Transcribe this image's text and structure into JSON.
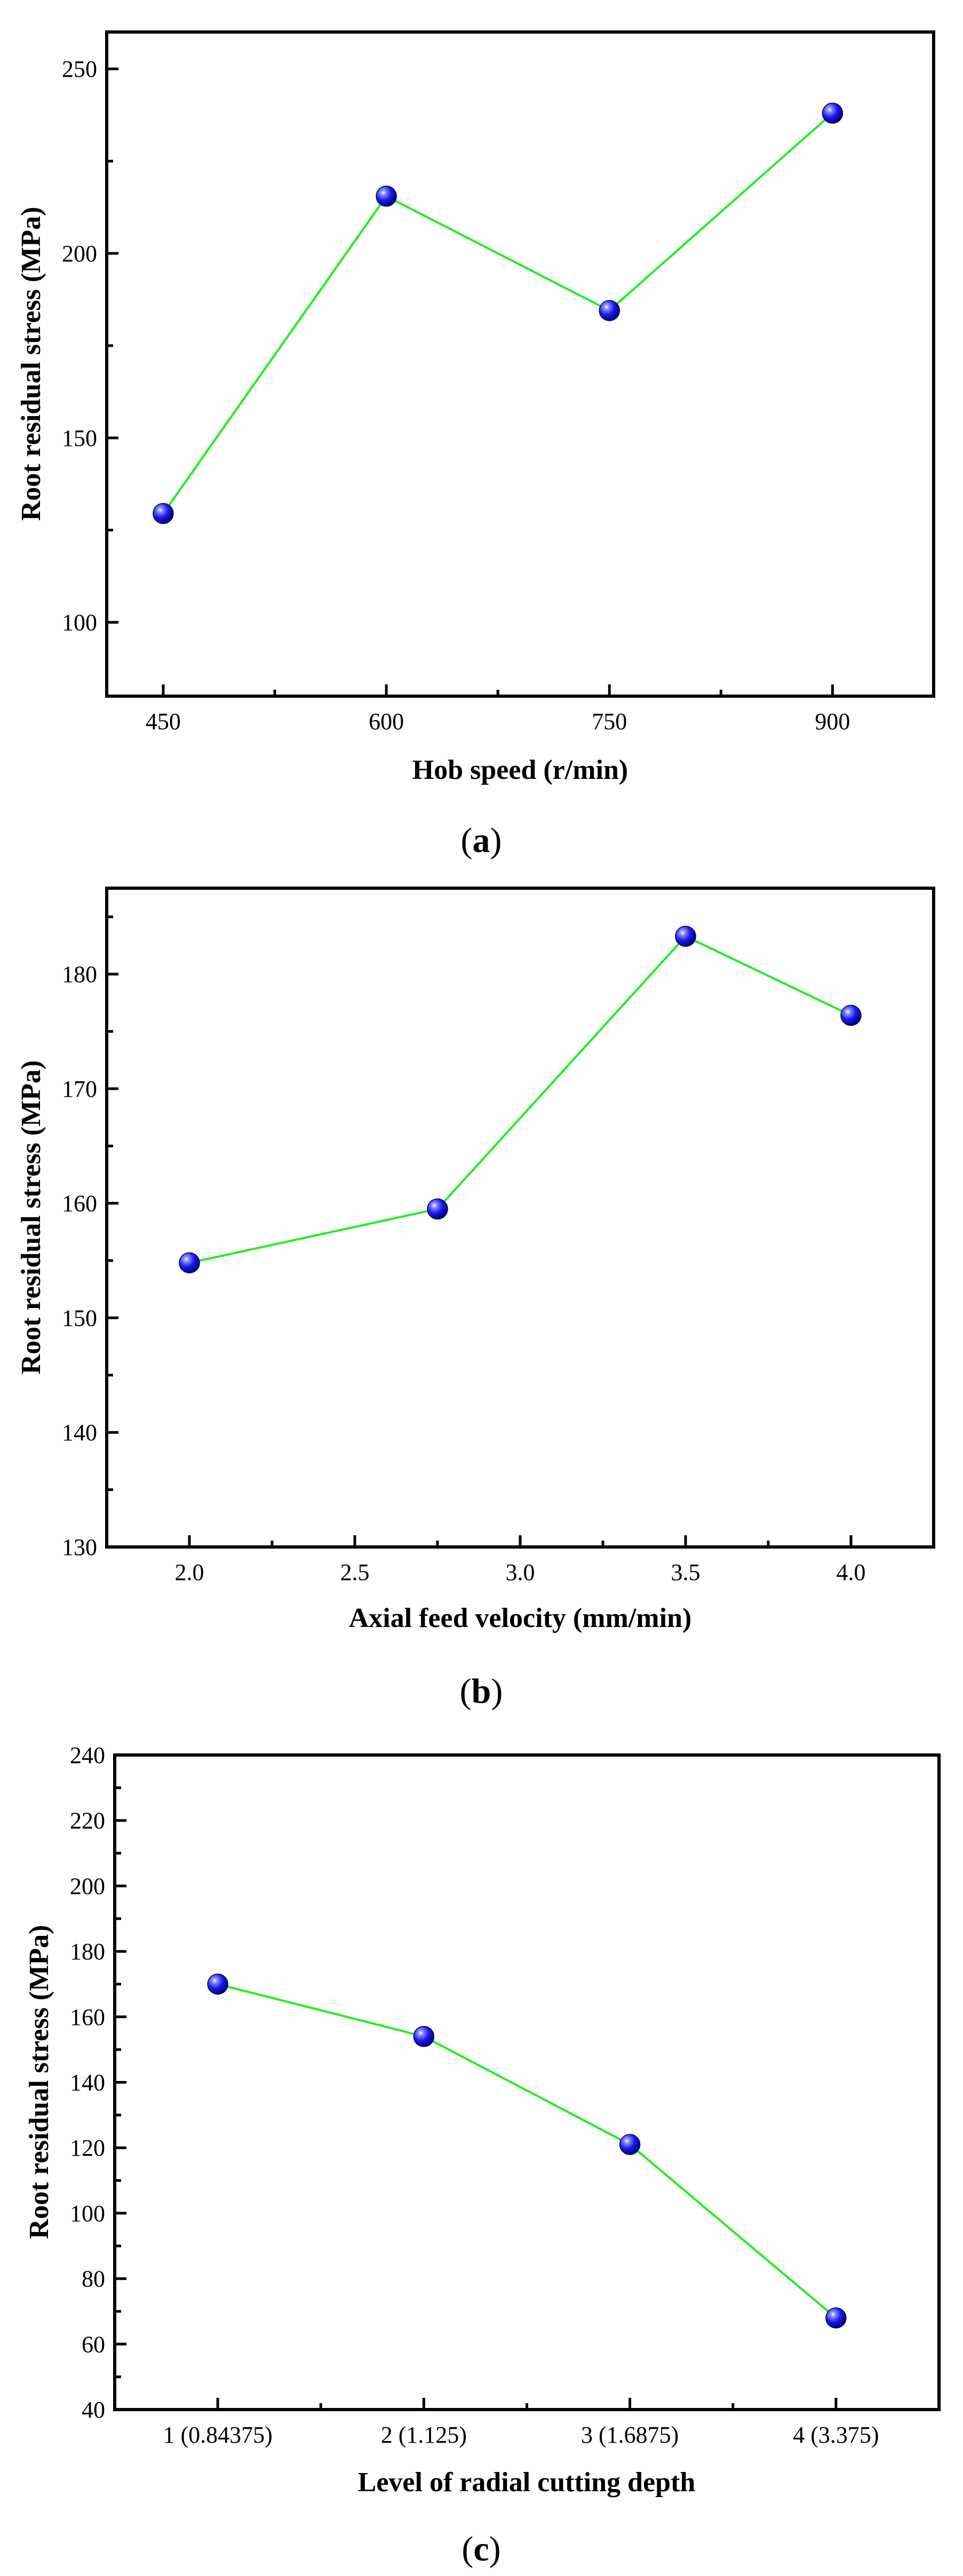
{
  "colors": {
    "line": "#22ee22",
    "marker": "#1a1aee",
    "axis": "#000000"
  },
  "chart_data": [
    {
      "type": "line",
      "panel": "a",
      "xlabel": "Hob speed (r/min)",
      "ylabel": "Root residual stress (MPa)",
      "categories": [
        "450",
        "600",
        "750",
        "900"
      ],
      "x": [
        450,
        600,
        750,
        900
      ],
      "values": [
        129.5,
        215.5,
        184.5,
        238
      ],
      "xlim": [
        412,
        968
      ],
      "ylim": [
        80,
        260
      ],
      "xticks": [
        "450",
        "600",
        "750",
        "900"
      ],
      "yticks": [
        "100",
        "150",
        "200",
        "250"
      ],
      "caption": {
        "open": "(",
        "letter": "a",
        "close": ")"
      }
    },
    {
      "type": "line",
      "panel": "b",
      "xlabel": "Axial feed velocity (mm/min)",
      "ylabel": "Root residual stress (MPa)",
      "x": [
        2.0,
        2.75,
        3.5,
        4.0
      ],
      "values": [
        154.8,
        159.5,
        183.3,
        176.4
      ],
      "xlim": [
        1.75,
        4.25
      ],
      "ylim": [
        130,
        187.5
      ],
      "xticks": [
        "2.0",
        "2.5",
        "3.0",
        "3.5",
        "4.0"
      ],
      "yticks": [
        "130",
        "140",
        "150",
        "160",
        "170",
        "180"
      ],
      "caption": {
        "open": "(",
        "letter": "b",
        "close": ")"
      }
    },
    {
      "type": "line",
      "panel": "c",
      "xlabel": "Level of radial cutting depth",
      "ylabel": "Root residual stress (MPa)",
      "categories": [
        "1 (0.84375)",
        "2 (1.125)",
        "3 (1.6875)",
        "4 (3.375)"
      ],
      "values": [
        170,
        154,
        121,
        68
      ],
      "ylim": [
        40,
        240
      ],
      "yticks": [
        "40",
        "60",
        "80",
        "100",
        "120",
        "140",
        "160",
        "180",
        "200",
        "220",
        "240"
      ],
      "caption": {
        "open": "(",
        "letter": "c",
        "close": ")"
      }
    }
  ]
}
